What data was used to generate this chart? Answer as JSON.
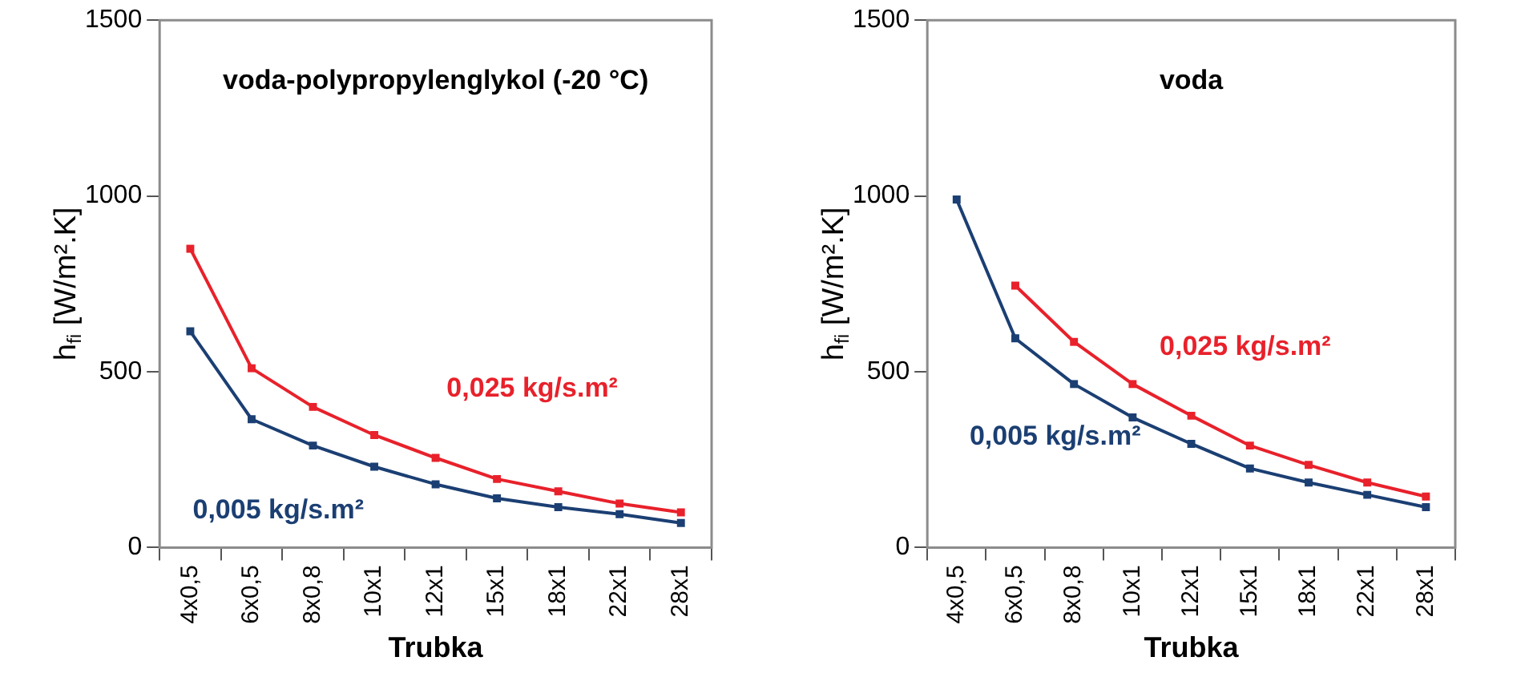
{
  "chart_data": [
    {
      "type": "line",
      "title": "voda-polypropylenglykol (-20 °C)",
      "xlabel": "Trubka",
      "ylabel": "h$_{fi}$ [W/m².K]",
      "categories": [
        "4x0,5",
        "6x0,5",
        "8x0,8",
        "10x1",
        "12x1",
        "15x1",
        "18x1",
        "22x1",
        "28x1"
      ],
      "ylim": [
        0,
        1500
      ],
      "yticks": [
        0,
        500,
        1000,
        1500
      ],
      "grid": false,
      "legend": false,
      "marker": "square",
      "line_style": "solid",
      "series": [
        {
          "name": "0,025 kg/s.m²",
          "color": "#e8212b",
          "values": [
            850,
            510,
            400,
            320,
            255,
            195,
            160,
            125,
            100
          ]
        },
        {
          "name": "0,005 kg/s.m²",
          "color": "#1b3f73",
          "values": [
            615,
            365,
            290,
            230,
            180,
            140,
            115,
            95,
            70
          ]
        }
      ]
    },
    {
      "type": "line",
      "title": "voda",
      "xlabel": "Trubka",
      "ylabel": "h$_{fi}$ [W/m².K]",
      "categories": [
        "4x0,5",
        "6x0,5",
        "8x0,8",
        "10x1",
        "12x1",
        "15x1",
        "18x1",
        "22x1",
        "28x1"
      ],
      "ylim": [
        0,
        1500
      ],
      "yticks": [
        0,
        500,
        1000,
        1500
      ],
      "grid": false,
      "legend": false,
      "marker": "square",
      "line_style": "solid",
      "series": [
        {
          "name": "0,025 kg/s.m²",
          "color": "#e8212b",
          "values": [
            null,
            745,
            585,
            465,
            375,
            290,
            235,
            185,
            145
          ]
        },
        {
          "name": "0,005 kg/s.m²",
          "color": "#1b3f73",
          "values": [
            990,
            595,
            465,
            370,
            295,
            225,
            185,
            150,
            115
          ]
        }
      ]
    }
  ]
}
